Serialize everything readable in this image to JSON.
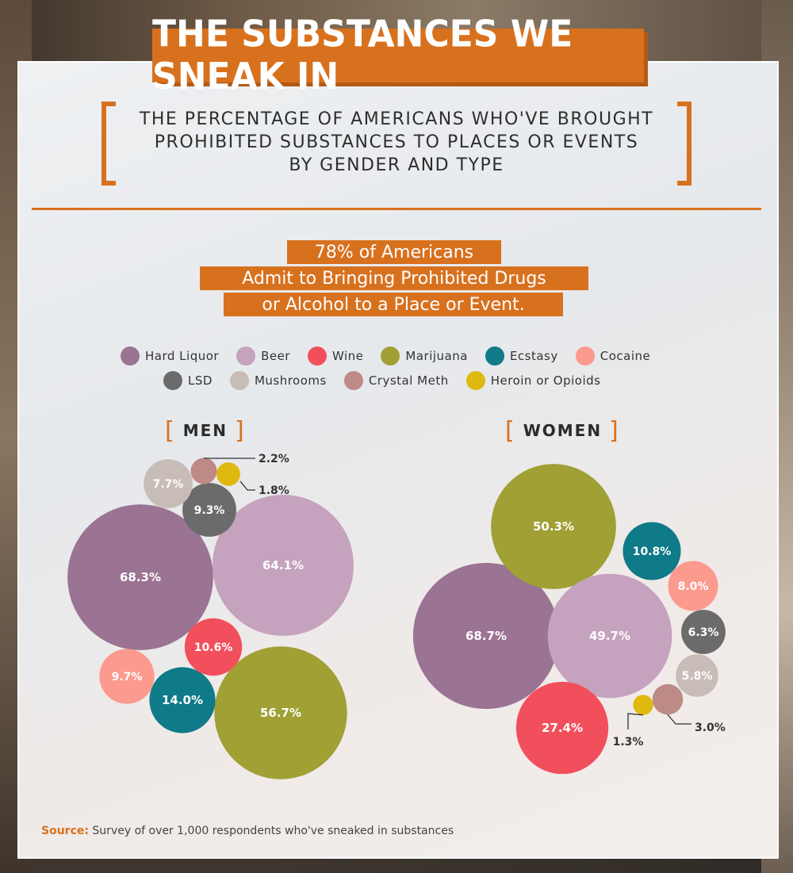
{
  "title": "THE SUBSTANCES WE SNEAK IN",
  "subtitle_lines": [
    "THE PERCENTAGE OF AMERICANS WHO'VE BROUGHT",
    "PROHIBITED SUBSTANCES TO PLACES OR EVENTS",
    "BY GENDER AND TYPE"
  ],
  "callout_lines": [
    "78% of Americans",
    "Admit to Bringing Prohibited Drugs",
    "or Alcohol to a Place or Event."
  ],
  "source": {
    "label": "Source:",
    "text": "Survey of over 1,000 respondents who've sneaked in substances"
  },
  "colors": {
    "accent": "#d8711e",
    "hard_liquor": "#9b7393",
    "beer": "#c5a2bd",
    "wine": "#f24f5c",
    "marijuana": "#a0a035",
    "ecstasy": "#0f7a88",
    "cocaine": "#fb9a8d",
    "lsd": "#6b6b6b",
    "mushrooms": "#c8bcb6",
    "crystal_meth": "#bd8a85",
    "heroin": "#dfb90f"
  },
  "chart_data": [
    {
      "type": "bubble",
      "title": "MEN",
      "legend": [
        "Hard Liquor",
        "Beer",
        "Wine",
        "Marijuana",
        "Ecstasy",
        "Cocaine",
        "LSD",
        "Mushrooms",
        "Crystal Meth",
        "Heroin or Opioids"
      ],
      "points": [
        {
          "category": "Hard Liquor",
          "value": 68.3,
          "label": "68.3%"
        },
        {
          "category": "Beer",
          "value": 64.1,
          "label": "64.1%"
        },
        {
          "category": "Marijuana",
          "value": 56.7,
          "label": "56.7%"
        },
        {
          "category": "Ecstasy",
          "value": 14.0,
          "label": "14.0%"
        },
        {
          "category": "Wine",
          "value": 10.6,
          "label": "10.6%"
        },
        {
          "category": "Cocaine",
          "value": 9.7,
          "label": "9.7%"
        },
        {
          "category": "LSD",
          "value": 9.3,
          "label": "9.3%"
        },
        {
          "category": "Mushrooms",
          "value": 7.7,
          "label": "7.7%"
        },
        {
          "category": "Crystal Meth",
          "value": 2.2,
          "label": "2.2%"
        },
        {
          "category": "Heroin or Opioids",
          "value": 1.8,
          "label": "1.8%"
        }
      ]
    },
    {
      "type": "bubble",
      "title": "WOMEN",
      "points": [
        {
          "category": "Hard Liquor",
          "value": 68.7,
          "label": "68.7%"
        },
        {
          "category": "Marijuana",
          "value": 50.3,
          "label": "50.3%"
        },
        {
          "category": "Beer",
          "value": 49.7,
          "label": "49.7%"
        },
        {
          "category": "Wine",
          "value": 27.4,
          "label": "27.4%"
        },
        {
          "category": "Ecstasy",
          "value": 10.8,
          "label": "10.8%"
        },
        {
          "category": "Cocaine",
          "value": 8.0,
          "label": "8.0%"
        },
        {
          "category": "LSD",
          "value": 6.3,
          "label": "6.3%"
        },
        {
          "category": "Mushrooms",
          "value": 5.8,
          "label": "5.8%"
        },
        {
          "category": "Crystal Meth",
          "value": 3.0,
          "label": "3.0%"
        },
        {
          "category": "Heroin or Opioids",
          "value": 1.3,
          "label": "1.3%"
        }
      ]
    }
  ]
}
